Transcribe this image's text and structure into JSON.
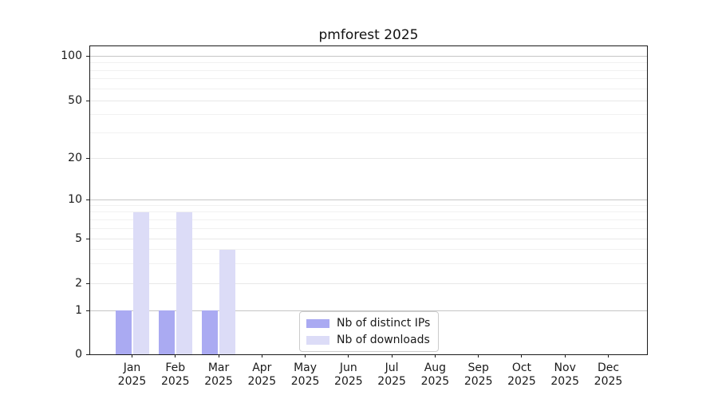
{
  "chart_data": {
    "type": "bar",
    "title": "pmforest 2025",
    "categories": [
      "Jan",
      "Feb",
      "Mar",
      "Apr",
      "May",
      "Jun",
      "Jul",
      "Aug",
      "Sep",
      "Oct",
      "Nov",
      "Dec"
    ],
    "category_year": "2025",
    "series": [
      {
        "name": "Nb of distinct IPs",
        "color": "#aaaaf2",
        "values": [
          1,
          1,
          1,
          0,
          0,
          0,
          0,
          0,
          0,
          0,
          0,
          0
        ]
      },
      {
        "name": "Nb of downloads",
        "color": "#dcdcf7",
        "values": [
          8,
          8,
          4,
          0,
          0,
          0,
          0,
          0,
          0,
          0,
          0,
          0
        ]
      }
    ],
    "yticks": [
      0,
      1,
      2,
      5,
      10,
      20,
      50,
      100
    ],
    "minor_gridline_values": [
      3,
      4,
      6,
      7,
      8,
      9,
      30,
      40,
      60,
      70,
      80,
      90
    ],
    "ylim": [
      0,
      117
    ],
    "xlabel": "",
    "ylabel": "",
    "yscale": "log-like (0,1,2,5,10,20,50,100)",
    "grid": true,
    "legend_position": "lower center",
    "colors": {
      "major_power10_gridline": "#c6c6c6",
      "other_tick_gridline": "#e8e8e8",
      "minor_gridline": "#f1f1f1",
      "axis": "#1a1a1a",
      "background": "#ffffff"
    }
  }
}
